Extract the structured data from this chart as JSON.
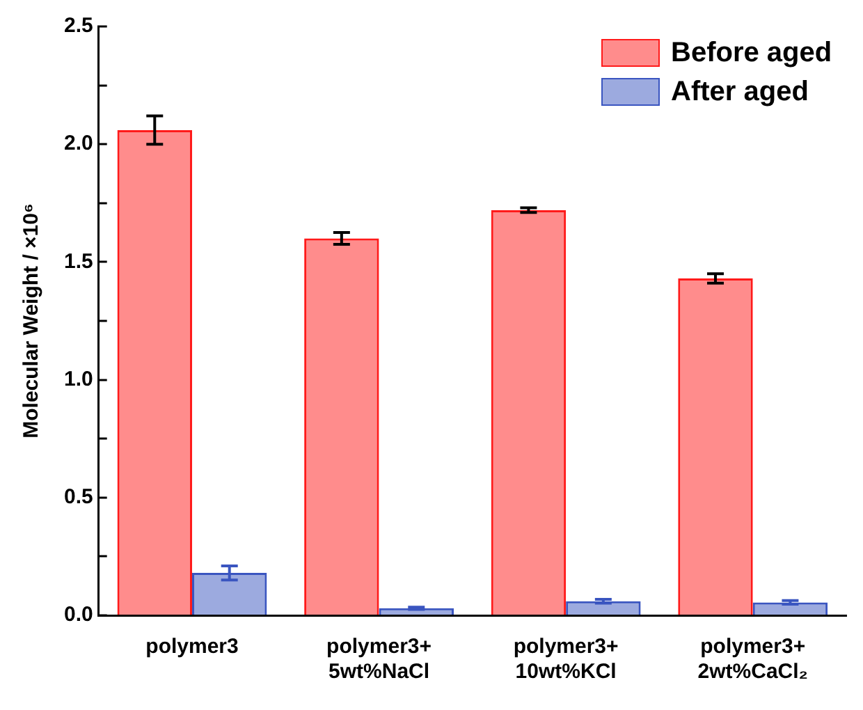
{
  "chart_data": {
    "type": "bar",
    "categories": [
      "polymer3",
      "polymer3+\n5wt%NaCl",
      "polymer3+\n10wt%KCl",
      "polymer3+\n2wt%CaCl₂"
    ],
    "ylabel": "Molecular Weight / ×10⁶",
    "series": [
      {
        "name": "Before aged",
        "color": "#ff1a1a",
        "values": [
          2.06,
          1.6,
          1.72,
          1.43
        ],
        "errors": [
          0.06,
          0.025,
          0.01,
          0.02
        ]
      },
      {
        "name": "After aged",
        "color": "#3a55c0",
        "values": [
          0.18,
          0.03,
          0.06,
          0.055
        ],
        "errors": [
          0.03,
          0.005,
          0.008,
          0.008
        ]
      }
    ],
    "ylim": [
      0,
      2.5
    ],
    "yticks": [
      {
        "value": 0,
        "label": "0.0"
      },
      {
        "value": 0.25,
        "label": null
      },
      0.5,
      {
        "value": 0.75,
        "label": null
      },
      {
        "value": 1,
        "label": "1.0"
      },
      {
        "value": 1.25,
        "label": null
      },
      1.5,
      {
        "value": 1.75,
        "label": null
      },
      {
        "value": 2,
        "label": "2.0"
      },
      {
        "value": 2.25,
        "label": null
      },
      2.5
    ],
    "grid": false,
    "legend": "top right"
  }
}
